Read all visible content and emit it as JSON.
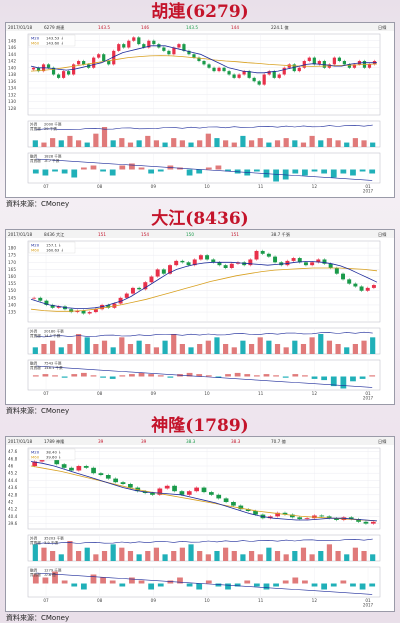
{
  "charts": [
    {
      "title": "胡連(6279)",
      "source": "資料來源：CMoney",
      "header": {
        "date": "2017/01/18",
        "code_name": "6279 胡連",
        "price": "143.5",
        "vol": "146",
        "chg": "143.5",
        "vol2": "144",
        "amt": "224.1 億",
        "period": "日線"
      },
      "legend": {
        "ma20": "M20",
        "ma60": "M60",
        "ma20_val": "143.53 ↓",
        "ma60_val": "143.60 ↓"
      },
      "volume_labels": {
        "label1": "外資",
        "label2": "買賣超",
        "val1": "2000 千張",
        "val2": "29 千張"
      },
      "chip_labels": {
        "label1": "融資",
        "label2": "買賣超",
        "val1": "1828 千張",
        "val2": "-8.7 千張"
      },
      "colors": {
        "up": "#e8304a",
        "down": "#1a9a4a",
        "ma20": "#1c2a9a",
        "ma60": "#d8a020",
        "hist": "#e07a7a",
        "hist2": "#20b0b8"
      },
      "chart_data": {
        "type": "candlestick",
        "x_ticks": [
          "07",
          "08",
          "09",
          "10",
          "11",
          "12",
          "01\n2017"
        ],
        "y_ticks": [
          148,
          146,
          144,
          142,
          140,
          138,
          136,
          134,
          132,
          130,
          128
        ],
        "ylim": [
          126,
          150
        ],
        "close": [
          140,
          139,
          141,
          140,
          138,
          137,
          139,
          138,
          141,
          142,
          141,
          140,
          143,
          144,
          142,
          141,
          145,
          147,
          146,
          148,
          149,
          147,
          146,
          148,
          147,
          146,
          145,
          144,
          146,
          147,
          145,
          144,
          143,
          142,
          141,
          140,
          139,
          140,
          139,
          138,
          137,
          138,
          139,
          137,
          136,
          135,
          138,
          139,
          137,
          138,
          140,
          141,
          139,
          140,
          142,
          143,
          141,
          142,
          140,
          141,
          143,
          142,
          141,
          140,
          141,
          142,
          140,
          141,
          142
        ],
        "ma20": [
          140.5,
          140,
          140,
          139.8,
          139.5,
          139.3,
          139.5,
          140,
          140.5,
          141,
          141.5,
          142.5,
          143.5,
          144.5,
          145,
          145.5,
          146,
          146.5,
          146.5,
          146.5,
          146,
          145.5,
          145,
          144.5,
          144,
          143,
          142,
          141,
          140,
          139.5,
          139,
          138.8,
          138.5,
          138.5,
          138.8,
          139,
          139.5,
          140,
          140.5,
          141,
          141.2,
          141,
          140.8,
          140.5,
          140.5,
          141,
          141.3,
          141.5,
          141.5,
          141.5
        ],
        "ma60": [
          139,
          139.2,
          139.5,
          140,
          140.5,
          141,
          141.5,
          142,
          142.5,
          143,
          143.3,
          143.5,
          143.6,
          143.5,
          143.3,
          143,
          142.7,
          142.3,
          142,
          141.8,
          141.5,
          141.3,
          141,
          140.8,
          140.6,
          140.5,
          140.4,
          140.5,
          140.6,
          140.7,
          140.8,
          141,
          141.1
        ],
        "vol": [
          3,
          2,
          4,
          3,
          5,
          3,
          2,
          6,
          9,
          3,
          4,
          2,
          3,
          5,
          3,
          2,
          4,
          3,
          2,
          3,
          6,
          4,
          3,
          2,
          5,
          3,
          4,
          2,
          3,
          4,
          3,
          2,
          5,
          3,
          4,
          3,
          2,
          4,
          3,
          2
        ],
        "chip": [
          -2,
          -3,
          -1,
          -2,
          -4,
          1,
          2,
          -1,
          -3,
          2,
          3,
          1,
          -2,
          -1,
          2,
          1,
          -3,
          -2,
          1,
          2,
          -1,
          -2,
          -3,
          -1,
          -4,
          -6,
          -5,
          -2,
          -3,
          -1,
          -2,
          -4,
          -2,
          -3,
          -1,
          -2
        ]
      }
    },
    {
      "title": "大江(8436)",
      "source": "資料來源：CMoney",
      "header": {
        "date": "2017/01/18",
        "code_name": "8436 大江",
        "price": "151",
        "vol": "154",
        "chg": "150",
        "vol2": "151",
        "amt": "38.7 千張",
        "period": "日線"
      },
      "legend": {
        "ma20": "M20",
        "ma60": "M60",
        "ma20_val": "157.1 ↓",
        "ma60_val": "160.63 ↓"
      },
      "volume_labels": {
        "label1": "外資",
        "label2": "買賣超",
        "val1": "20180 千張",
        "val2": "14.1 千張"
      },
      "chip_labels": {
        "label1": "融資",
        "label2": "買賣超",
        "val1": "7543 千張",
        "val2": "148.1 千張"
      },
      "colors": {
        "up": "#e8304a",
        "down": "#1a9a4a",
        "ma20": "#1c2a9a",
        "ma60": "#d8a020",
        "hist": "#e07a7a",
        "hist2": "#20b0b8"
      },
      "chart_data": {
        "type": "candlestick",
        "x_ticks": [
          "07",
          "08",
          "09",
          "10",
          "11",
          "12",
          "01\n2017"
        ],
        "y_ticks": [
          180,
          175,
          170,
          165,
          160,
          155,
          150,
          145,
          140,
          135
        ],
        "ylim": [
          128,
          185
        ],
        "close": [
          145,
          143,
          140,
          138,
          139,
          137,
          135,
          136,
          134,
          135,
          137,
          140,
          138,
          141,
          145,
          148,
          152,
          151,
          156,
          160,
          165,
          162,
          168,
          171,
          170,
          168,
          172,
          175,
          172,
          170,
          168,
          166,
          169,
          170,
          168,
          172,
          178,
          176,
          174,
          170,
          168,
          171,
          173,
          170,
          168,
          170,
          172,
          169,
          166,
          162,
          158,
          155,
          153,
          150,
          152,
          154
        ],
        "ma20": [
          144,
          142,
          140,
          139,
          138,
          137.5,
          137.5,
          138,
          139,
          141,
          143,
          146,
          150,
          154,
          158,
          162,
          165,
          167,
          168.5,
          169.5,
          170,
          170,
          170,
          169.5,
          169,
          168.5,
          168,
          168.5,
          169,
          170,
          170.5,
          170.5,
          170,
          169,
          167.5,
          165,
          162,
          159,
          156
        ],
        "ma60": [
          137,
          136,
          135.5,
          135.5,
          136,
          137,
          138.5,
          140,
          142,
          144,
          146.5,
          149,
          151.5,
          154,
          156.5,
          158.5,
          160.5,
          162,
          163.5,
          164.5,
          165,
          165.5,
          166,
          166,
          166,
          165.5,
          165,
          164
        ],
        "vol": [
          2,
          3,
          4,
          2,
          3,
          6,
          5,
          3,
          4,
          2,
          5,
          3,
          4,
          3,
          2,
          4,
          6,
          3,
          2,
          3,
          4,
          5,
          3,
          2,
          4,
          3,
          5,
          4,
          3,
          2,
          4,
          3,
          5,
          6,
          4,
          3,
          2,
          3,
          4,
          5
        ],
        "chip": [
          1,
          2,
          1,
          -1,
          2,
          3,
          1,
          -1,
          -2,
          1,
          2,
          3,
          2,
          1,
          -1,
          2,
          3,
          2,
          1,
          -1,
          2,
          3,
          2,
          1,
          2,
          1,
          -1,
          2,
          1,
          -2,
          -3,
          -8,
          -10,
          -4,
          -2,
          1
        ]
      }
    },
    {
      "title": "神隆(1789)",
      "source": "資料來源：CMoney",
      "header": {
        "date": "2017/01/18",
        "code_name": "1789 神隆",
        "price": "39",
        "vol": "39",
        "chg": "38.3",
        "vol2": "38.3",
        "amt": "70.7 億",
        "period": "日線"
      },
      "legend": {
        "ma20": "M20",
        "ma60": "M60",
        "ma20_val": "38.40 ↓",
        "ma60_val": "39.60 ↓"
      },
      "volume_labels": {
        "label1": "外資",
        "label2": "買賣超",
        "val1": "35203 千張",
        "val2": "3.9 千張"
      },
      "chip_labels": {
        "label1": "融資",
        "label2": "買賣超",
        "val1": "1279 千張",
        "val2": "-0.6 億"
      },
      "colors": {
        "up": "#e8304a",
        "down": "#1a9a4a",
        "ma20": "#1c2a9a",
        "ma60": "#d8a020",
        "hist": "#e07a7a",
        "hist2": "#20b0b8"
      },
      "chart_data": {
        "type": "candlestick",
        "x_ticks": [
          "07",
          "08",
          "09",
          "10",
          "11",
          "12",
          "01\n2017"
        ],
        "y_ticks": [
          47.6,
          46.8,
          46,
          45.2,
          44.4,
          43.6,
          42.8,
          42,
          41.2,
          40.4,
          39.6
        ],
        "ylim": [
          39,
          48
        ],
        "close": [
          46.5,
          47,
          46.8,
          46.2,
          45.8,
          45.5,
          46,
          45.8,
          45.2,
          45,
          44.6,
          44.2,
          44,
          43.6,
          43.2,
          43,
          42.8,
          43.5,
          43.8,
          43.2,
          42.8,
          43.2,
          43.6,
          43.1,
          42.8,
          42.4,
          42,
          41.6,
          41.2,
          41,
          40.6,
          40.2,
          40.4,
          40.8,
          40.6,
          40.3,
          40.1,
          40.2,
          40.5,
          40.4,
          40.2,
          40,
          40.3,
          40.1,
          39.8,
          39.6,
          39.8
        ],
        "ma20": [
          46.5,
          46.3,
          46,
          45.6,
          45.2,
          44.8,
          44.4,
          44,
          43.6,
          43.3,
          43.1,
          43,
          42.9,
          42.8,
          42.5,
          42.2,
          41.9,
          41.5,
          41.1,
          40.7,
          40.4,
          40.2,
          40.1,
          40,
          40,
          40.1,
          40.2,
          40.2,
          40.1,
          40,
          39.9
        ],
        "ma60": [
          46,
          45.7,
          45.4,
          45,
          44.6,
          44.2,
          43.8,
          43.4,
          43.1,
          42.8,
          42.5,
          42.2,
          41.9,
          41.6,
          41.3,
          41,
          40.8,
          40.6,
          40.4,
          40.3,
          40.2,
          40.1,
          40,
          39.9
        ],
        "vol": [
          5,
          4,
          3,
          2,
          6,
          3,
          4,
          2,
          3,
          5,
          4,
          3,
          2,
          3,
          4,
          2,
          3,
          4,
          5,
          3,
          2,
          3,
          4,
          3,
          2,
          3,
          2,
          4,
          3,
          2,
          3,
          4,
          2,
          3,
          5,
          3,
          2,
          4,
          3,
          2
        ],
        "chip": [
          3,
          2,
          4,
          1,
          -1,
          -2,
          3,
          2,
          1,
          -1,
          2,
          1,
          -2,
          -1,
          1,
          2,
          -1,
          -2,
          1,
          -1,
          -2,
          -1,
          1,
          -1,
          -2,
          -1,
          1,
          2,
          1,
          -1,
          -2,
          -1,
          1,
          -1,
          -2,
          -1
        ]
      }
    }
  ]
}
